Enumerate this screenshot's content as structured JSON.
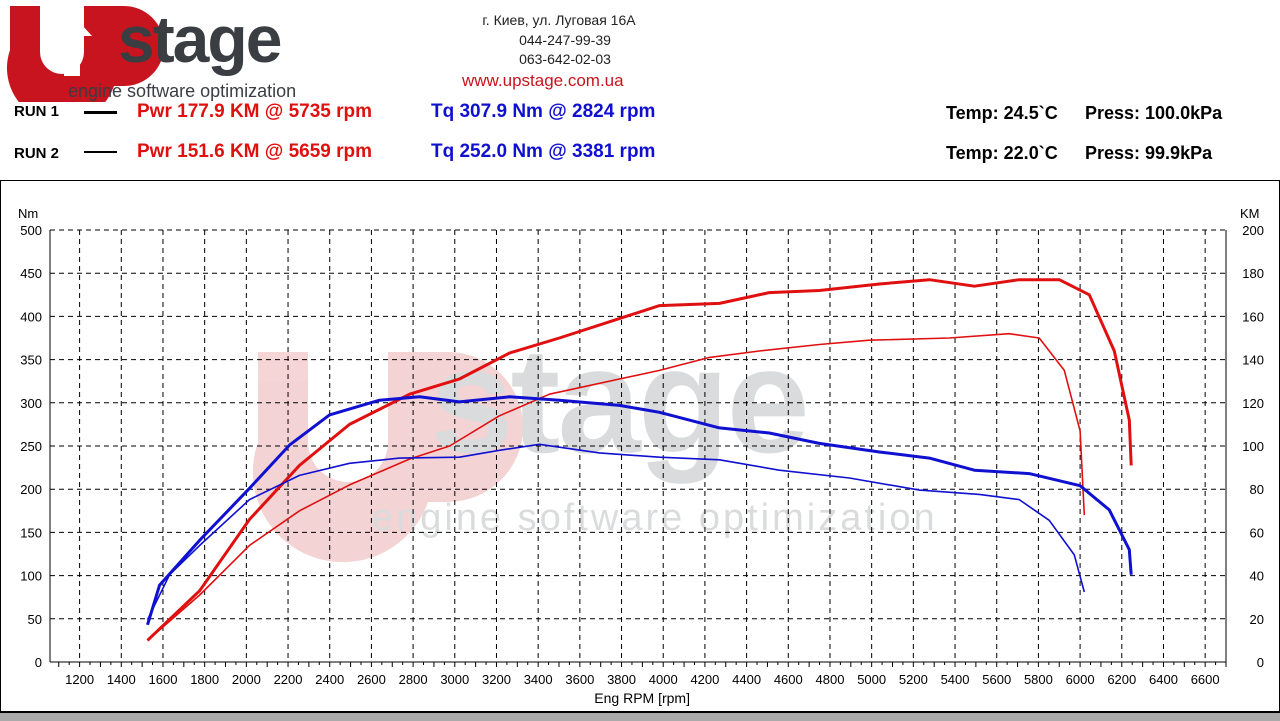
{
  "logo": {
    "brand": "UPstage",
    "tagline": "engine software optimization"
  },
  "contact": {
    "address": "г. Киев, ул. Луговая 16А",
    "phone1": "044-247-99-39",
    "phone2": "063-642-02-03",
    "website": "www.upstage.com.ua"
  },
  "runs": [
    {
      "label": "RUN 1",
      "power": "Pwr  177.9 KM @ 5735 rpm",
      "torque": "Tq 307.9 Nm @ 2824 rpm",
      "temp": "Temp: 24.5`C",
      "press": "Press: 100.0kPa"
    },
    {
      "label": "RUN 2",
      "power": "Pwr  151.6 KM @ 5659 rpm",
      "torque": "Tq 252.0 Nm @ 3381 rpm",
      "temp": "Temp: 22.0`C",
      "press": "Press: 99.9kPa"
    }
  ],
  "colors": {
    "power": "#e01010",
    "torque": "#1010d0",
    "brand_red": "#c8141e",
    "brand_grey": "#3a3d42"
  },
  "chart_data": {
    "type": "line",
    "xlabel": "Eng RPM [rpm]",
    "ylabel": "Nm",
    "y2label": "KM",
    "xlim": [
      1058,
      6700
    ],
    "ylim": [
      0,
      500
    ],
    "y2lim": [
      0,
      200
    ],
    "xticks": [
      1200,
      1400,
      1600,
      1800,
      2000,
      2200,
      2400,
      2600,
      2800,
      3000,
      3200,
      3400,
      3600,
      3800,
      4000,
      4200,
      4400,
      4600,
      4800,
      5000,
      5200,
      5400,
      5600,
      5800,
      6000,
      6200,
      6400,
      6600
    ],
    "yticks": [
      0,
      50,
      100,
      150,
      200,
      250,
      300,
      350,
      400,
      450,
      500
    ],
    "y2ticks": [
      0,
      20,
      40,
      60,
      80,
      100,
      120,
      140,
      160,
      180,
      200
    ],
    "grid": true,
    "series": [
      {
        "name": "RUN 1 Pwr",
        "axis": "right",
        "color": "#e01010",
        "width": 3,
        "x": [
          1526,
          1776,
          2015,
          2255,
          2495,
          2783,
          3022,
          3262,
          3502,
          3790,
          3982,
          4270,
          4509,
          4749,
          5037,
          5277,
          5493,
          5708,
          5900,
          6044,
          6164,
          6236,
          6245
        ],
        "y": [
          10,
          33,
          66,
          91,
          110,
          124,
          131,
          143,
          150,
          159,
          165,
          166,
          171,
          172,
          175,
          177,
          174,
          177,
          177,
          170,
          144,
          112,
          91
        ]
      },
      {
        "name": "RUN 2 Pwr",
        "axis": "right",
        "color": "#e01010",
        "width": 1.6,
        "x": [
          1526,
          1776,
          2015,
          2255,
          2495,
          2783,
          2975,
          3214,
          3454,
          3790,
          3982,
          4222,
          4461,
          4749,
          4989,
          5373,
          5660,
          5804,
          5924,
          6000,
          6020
        ],
        "y": [
          10,
          31,
          54,
          70,
          82,
          94,
          100,
          114,
          124,
          131,
          135,
          141,
          144,
          147,
          149,
          150,
          152,
          150,
          135,
          107,
          68
        ]
      },
      {
        "name": "RUN 1 Tq",
        "axis": "left",
        "color": "#1010d0",
        "width": 3,
        "x": [
          1526,
          1584,
          1776,
          2015,
          2207,
          2399,
          2639,
          2831,
          3022,
          3262,
          3502,
          3790,
          3982,
          4270,
          4509,
          4749,
          5037,
          5277,
          5493,
          5756,
          6000,
          6140,
          6236,
          6245
        ],
        "y": [
          43,
          89,
          141,
          201,
          251,
          286,
          303,
          307,
          301,
          307,
          303,
          297,
          289,
          271,
          265,
          253,
          243,
          236,
          222,
          218,
          204,
          176,
          130,
          101
        ]
      },
      {
        "name": "RUN 2 Tq",
        "axis": "left",
        "color": "#1010d0",
        "width": 1.6,
        "x": [
          1526,
          1632,
          1776,
          2015,
          2255,
          2495,
          2735,
          3022,
          3214,
          3406,
          3694,
          3982,
          4270,
          4557,
          4893,
          5229,
          5517,
          5708,
          5852,
          5972,
          6020
        ],
        "y": [
          49,
          101,
          135,
          188,
          216,
          230,
          236,
          237,
          245,
          252,
          242,
          237,
          234,
          222,
          213,
          199,
          194,
          188,
          164,
          124,
          81
        ]
      }
    ]
  }
}
